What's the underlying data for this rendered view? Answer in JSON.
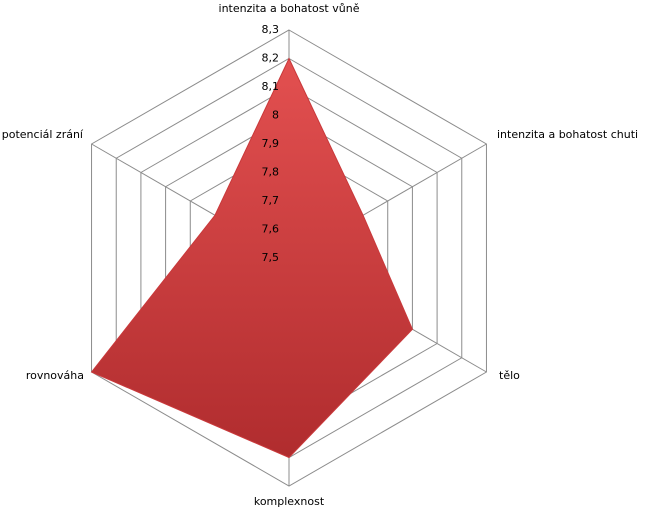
{
  "chart_data": {
    "type": "radar",
    "categories": [
      "intenzita a bohatost vůně",
      "intenzita a bohatost chuti",
      "tělo",
      "komplexnost",
      "rovnováha",
      "potenciál zrání"
    ],
    "values": [
      8.2,
      7.8,
      8.0,
      8.2,
      8.3,
      7.8
    ],
    "color": "#c9393b",
    "ylim": [
      7.5,
      8.3
    ],
    "yticks": [
      {
        "value": 7.5,
        "label": "7,5"
      },
      {
        "value": 7.6,
        "label": "7,6"
      },
      {
        "value": 7.7,
        "label": "7,7"
      },
      {
        "value": 7.8,
        "label": "7,8"
      },
      {
        "value": 7.9,
        "label": "7,9"
      },
      8,
      {
        "value": 8.1,
        "label": "8,1"
      },
      {
        "value": 8.2,
        "label": "8,2"
      },
      {
        "value": 8.3,
        "label": "8,3"
      }
    ],
    "grid": true
  }
}
